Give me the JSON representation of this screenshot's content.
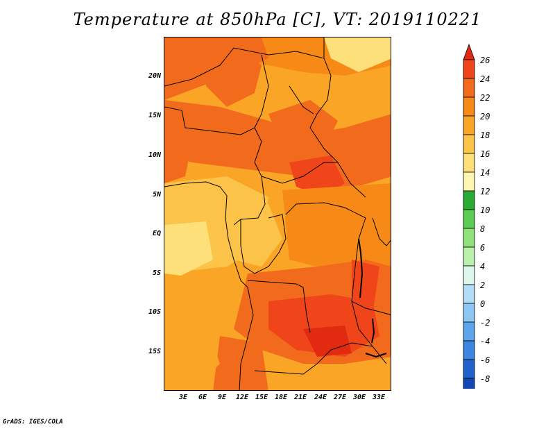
{
  "title": "Temperature at 850hPa [C], VT: 2019110221",
  "footer": "GrADS: IGES/COLA",
  "lat_labels": [
    "20N",
    "15N",
    "10N",
    "5N",
    "EQ",
    "5S",
    "10S",
    "15S"
  ],
  "lon_labels": [
    "3E",
    "6E",
    "9E",
    "12E",
    "15E",
    "18E",
    "21E",
    "24E",
    "27E",
    "30E",
    "33E"
  ],
  "colorbar": {
    "levels": [
      "26",
      "24",
      "22",
      "20",
      "18",
      "16",
      "14",
      "12",
      "10",
      "8",
      "6",
      "4",
      "2",
      "0",
      "-2",
      "-4",
      "-6",
      "-8"
    ],
    "colors": [
      "#e12a10",
      "#f0441a",
      "#f26a1c",
      "#f78a16",
      "#faa526",
      "#fbc348",
      "#fde07a",
      "#fef6b0",
      "#2aac34",
      "#5ccd52",
      "#8ee37c",
      "#b8f0ac",
      "#dcf6ec",
      "#b4dcf6",
      "#8cc6f2",
      "#5ea6ec",
      "#3c86e0",
      "#2062cc",
      "#1446b4",
      "#0c2c90",
      "#080e60",
      "#e2e6f6"
    ]
  }
}
